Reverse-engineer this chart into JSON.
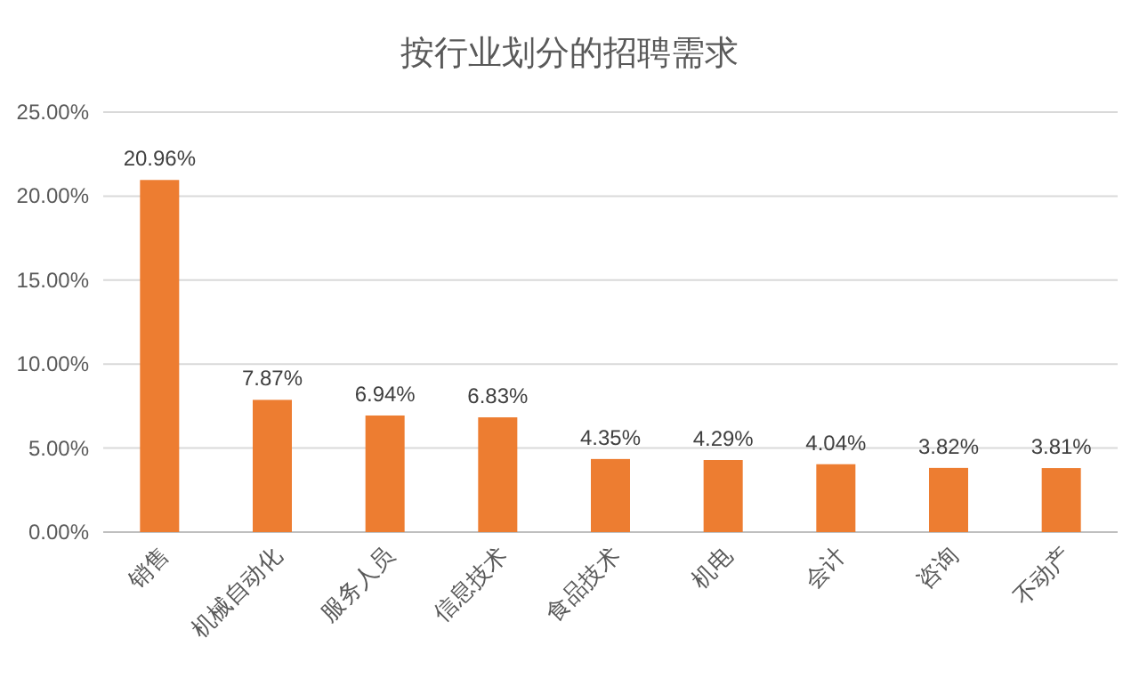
{
  "chart_data": {
    "type": "bar",
    "title": "按行业划分的招聘需求",
    "categories": [
      "销售",
      "机械自动化",
      "服务人员",
      "信息技术",
      "食品技术",
      "机电",
      "会计",
      "咨询",
      "不动产"
    ],
    "values": [
      20.96,
      7.87,
      6.94,
      6.83,
      4.35,
      4.29,
      4.04,
      3.82,
      3.81
    ],
    "value_labels": [
      "20.96%",
      "7.87%",
      "6.94%",
      "6.83%",
      "4.35%",
      "4.29%",
      "4.04%",
      "3.82%",
      "3.81%"
    ],
    "color": "#ed7d31",
    "ylim": [
      0,
      25
    ],
    "yticks": [
      {
        "value": 0,
        "label": "0.00%"
      },
      {
        "value": 5,
        "label": "5.00%"
      },
      {
        "value": 10,
        "label": "10.00%"
      },
      {
        "value": 15,
        "label": "15.00%"
      },
      {
        "value": 20,
        "label": "20.00%"
      },
      {
        "value": 25,
        "label": "25.00%"
      }
    ],
    "grid": "y"
  }
}
